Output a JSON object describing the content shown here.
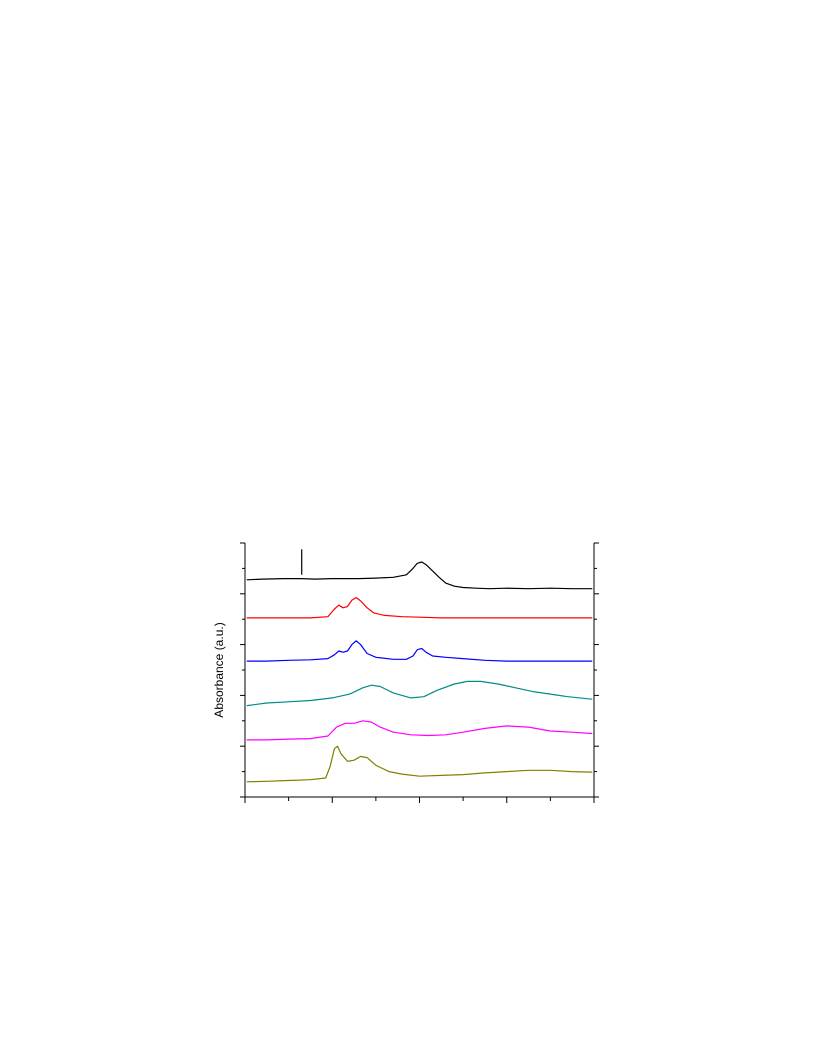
{
  "chart_data": {
    "type": "line",
    "title": "",
    "xlabel": "",
    "ylabel": "Absorbance (a.u.)",
    "xlim": [
      0,
      8
    ],
    "ylim": [
      0,
      10
    ],
    "x_ticks": [
      0,
      1,
      2,
      3,
      4,
      5,
      6,
      7,
      8
    ],
    "y_ticks": [
      0,
      1,
      2,
      3,
      4,
      5,
      6,
      7,
      8,
      9,
      10
    ],
    "grid": false,
    "legend": "none",
    "marker": {
      "x": 1.3,
      "y_from": 8.75,
      "y_to": 9.75
    },
    "series": [
      {
        "color": "#000000",
        "points": [
          [
            0.05,
            8.55
          ],
          [
            0.4,
            8.58
          ],
          [
            0.9,
            8.6
          ],
          [
            1.3,
            8.6
          ],
          [
            1.6,
            8.58
          ],
          [
            2.0,
            8.6
          ],
          [
            2.6,
            8.6
          ],
          [
            3.0,
            8.62
          ],
          [
            3.4,
            8.65
          ],
          [
            3.7,
            8.75
          ],
          [
            3.85,
            9.0
          ],
          [
            3.95,
            9.2
          ],
          [
            4.05,
            9.25
          ],
          [
            4.15,
            9.15
          ],
          [
            4.3,
            8.9
          ],
          [
            4.45,
            8.65
          ],
          [
            4.6,
            8.42
          ],
          [
            4.8,
            8.3
          ],
          [
            5.0,
            8.25
          ],
          [
            5.3,
            8.22
          ],
          [
            5.6,
            8.2
          ],
          [
            6.0,
            8.22
          ],
          [
            6.5,
            8.2
          ],
          [
            7.0,
            8.22
          ],
          [
            7.5,
            8.2
          ],
          [
            7.95,
            8.2
          ]
        ]
      },
      {
        "color": "#ff0000",
        "points": [
          [
            0.05,
            7.05
          ],
          [
            0.5,
            7.05
          ],
          [
            1.0,
            7.05
          ],
          [
            1.5,
            7.05
          ],
          [
            1.9,
            7.1
          ],
          [
            2.05,
            7.4
          ],
          [
            2.15,
            7.55
          ],
          [
            2.25,
            7.45
          ],
          [
            2.35,
            7.5
          ],
          [
            2.45,
            7.75
          ],
          [
            2.55,
            7.85
          ],
          [
            2.65,
            7.72
          ],
          [
            2.8,
            7.45
          ],
          [
            2.95,
            7.25
          ],
          [
            3.2,
            7.15
          ],
          [
            3.6,
            7.1
          ],
          [
            4.0,
            7.08
          ],
          [
            4.5,
            7.05
          ],
          [
            5.0,
            7.05
          ],
          [
            5.5,
            7.05
          ],
          [
            6.0,
            7.05
          ],
          [
            6.5,
            7.05
          ],
          [
            7.0,
            7.05
          ],
          [
            7.5,
            7.05
          ],
          [
            7.95,
            7.05
          ]
        ]
      },
      {
        "color": "#0000ff",
        "points": [
          [
            0.05,
            5.35
          ],
          [
            0.5,
            5.35
          ],
          [
            1.0,
            5.38
          ],
          [
            1.5,
            5.4
          ],
          [
            1.9,
            5.45
          ],
          [
            2.05,
            5.6
          ],
          [
            2.15,
            5.75
          ],
          [
            2.25,
            5.7
          ],
          [
            2.35,
            5.75
          ],
          [
            2.45,
            6.0
          ],
          [
            2.55,
            6.15
          ],
          [
            2.65,
            6.0
          ],
          [
            2.8,
            5.65
          ],
          [
            3.0,
            5.5
          ],
          [
            3.4,
            5.42
          ],
          [
            3.7,
            5.42
          ],
          [
            3.85,
            5.55
          ],
          [
            3.95,
            5.8
          ],
          [
            4.05,
            5.85
          ],
          [
            4.15,
            5.7
          ],
          [
            4.3,
            5.55
          ],
          [
            4.6,
            5.5
          ],
          [
            5.0,
            5.45
          ],
          [
            5.5,
            5.38
          ],
          [
            6.0,
            5.35
          ],
          [
            6.5,
            5.35
          ],
          [
            7.0,
            5.35
          ],
          [
            7.5,
            5.35
          ],
          [
            7.95,
            5.35
          ]
        ]
      },
      {
        "color": "#008b8b",
        "points": [
          [
            0.05,
            3.6
          ],
          [
            0.5,
            3.7
          ],
          [
            1.0,
            3.75
          ],
          [
            1.5,
            3.8
          ],
          [
            2.0,
            3.9
          ],
          [
            2.4,
            4.05
          ],
          [
            2.7,
            4.3
          ],
          [
            2.9,
            4.4
          ],
          [
            3.1,
            4.35
          ],
          [
            3.4,
            4.1
          ],
          [
            3.8,
            3.9
          ],
          [
            4.1,
            3.95
          ],
          [
            4.4,
            4.2
          ],
          [
            4.8,
            4.45
          ],
          [
            5.1,
            4.55
          ],
          [
            5.4,
            4.55
          ],
          [
            5.8,
            4.45
          ],
          [
            6.2,
            4.3
          ],
          [
            6.6,
            4.15
          ],
          [
            7.0,
            4.05
          ],
          [
            7.4,
            3.95
          ],
          [
            7.95,
            3.85
          ]
        ]
      },
      {
        "color": "#ff00ff",
        "points": [
          [
            0.05,
            2.25
          ],
          [
            0.5,
            2.25
          ],
          [
            1.0,
            2.28
          ],
          [
            1.5,
            2.3
          ],
          [
            1.9,
            2.4
          ],
          [
            2.1,
            2.75
          ],
          [
            2.3,
            2.9
          ],
          [
            2.5,
            2.9
          ],
          [
            2.7,
            3.0
          ],
          [
            2.9,
            2.95
          ],
          [
            3.1,
            2.75
          ],
          [
            3.4,
            2.55
          ],
          [
            3.8,
            2.45
          ],
          [
            4.2,
            2.42
          ],
          [
            4.6,
            2.45
          ],
          [
            5.0,
            2.55
          ],
          [
            5.5,
            2.7
          ],
          [
            6.0,
            2.8
          ],
          [
            6.5,
            2.75
          ],
          [
            7.0,
            2.6
          ],
          [
            7.5,
            2.55
          ],
          [
            7.95,
            2.5
          ]
        ]
      },
      {
        "color": "#808000",
        "points": [
          [
            0.05,
            0.6
          ],
          [
            0.5,
            0.62
          ],
          [
            1.0,
            0.65
          ],
          [
            1.5,
            0.68
          ],
          [
            1.85,
            0.75
          ],
          [
            1.95,
            1.2
          ],
          [
            2.05,
            1.9
          ],
          [
            2.12,
            2.0
          ],
          [
            2.2,
            1.7
          ],
          [
            2.35,
            1.4
          ],
          [
            2.5,
            1.45
          ],
          [
            2.65,
            1.6
          ],
          [
            2.8,
            1.55
          ],
          [
            3.0,
            1.25
          ],
          [
            3.3,
            1.0
          ],
          [
            3.6,
            0.9
          ],
          [
            4.0,
            0.82
          ],
          [
            4.5,
            0.85
          ],
          [
            5.0,
            0.88
          ],
          [
            5.5,
            0.95
          ],
          [
            6.0,
            1.0
          ],
          [
            6.5,
            1.05
          ],
          [
            7.0,
            1.05
          ],
          [
            7.5,
            1.0
          ],
          [
            7.95,
            0.98
          ]
        ]
      }
    ]
  }
}
